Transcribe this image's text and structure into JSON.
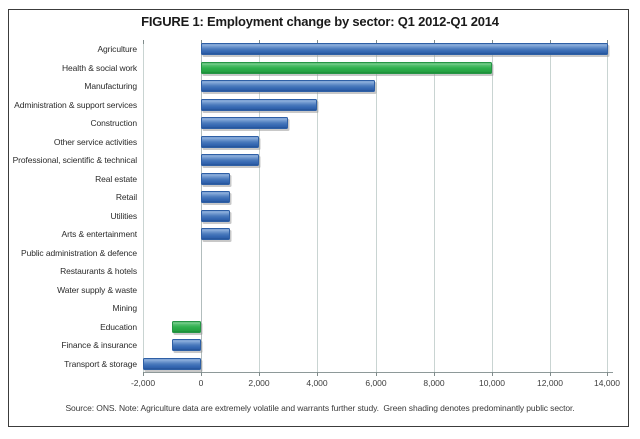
{
  "figure": {
    "title": "FIGURE 1: Employment change by sector: Q1 2012-Q1 2014",
    "source_note": "Source: ONS. Note: Agriculture data are extremely volatile and warrants further study.  Green shading denotes predominantly public sector."
  },
  "colors": {
    "bar_blue": "#3a6cb5",
    "bar_green": "#2eae4b",
    "gridline": "#c9d4d2",
    "axis_line": "#8e9999",
    "frame_border": "#3c3c3c"
  },
  "chart_data": {
    "type": "bar",
    "orientation": "horizontal",
    "title": "FIGURE 1: Employment change by sector: Q1 2012-Q1 2014",
    "categories": [
      "Agriculture",
      "Health & social work",
      "Manufacturing",
      "Administration & support services",
      "Construction",
      "Other service activities",
      "Professional, scientific & technical",
      "Real estate",
      "Retail",
      "Utilities",
      "Arts & entertainment",
      "Public administration & defence",
      "Restaurants & hotels",
      "Water supply & waste",
      "Mining",
      "Education",
      "Finance & insurance",
      "Transport & storage"
    ],
    "values": [
      14000,
      10000,
      6000,
      4000,
      3000,
      2000,
      2000,
      1000,
      1000,
      1000,
      1000,
      0,
      0,
      0,
      0,
      -1000,
      -1000,
      -2000
    ],
    "bar_colors": [
      "blue",
      "green",
      "blue",
      "blue",
      "blue",
      "blue",
      "blue",
      "blue",
      "blue",
      "blue",
      "blue",
      "blue",
      "blue",
      "blue",
      "blue",
      "green",
      "blue",
      "blue"
    ],
    "green_meaning": "predominantly public sector",
    "xlabel": "",
    "ylabel": "",
    "xlim": [
      -2000,
      14000
    ],
    "xticks": [
      -2000,
      0,
      2000,
      4000,
      6000,
      8000,
      10000,
      12000,
      14000
    ],
    "xtick_labels": [
      "-2,000",
      "0",
      "2,000",
      "4,000",
      "6,000",
      "8,000",
      "10,000",
      "12,000",
      "14,000"
    ],
    "grid": true,
    "legend": "none"
  }
}
